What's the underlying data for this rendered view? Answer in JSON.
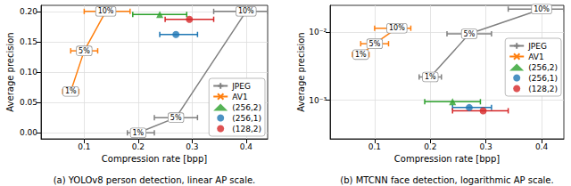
{
  "chart_data": [
    {
      "type": "line",
      "title": "(a) YOLOv8 person detection, linear AP scale.",
      "x_label": "Compression rate [bpp]",
      "y_label": "Average precision",
      "xlim": [
        0.02,
        0.44
      ],
      "xticks": [
        0.1,
        0.2,
        0.3,
        0.4
      ],
      "ylim": [
        -0.01,
        0.21
      ],
      "yticks": [
        {
          "value": 0,
          "label": "0.00"
        },
        {
          "value": 0.05,
          "label": "0.05"
        },
        {
          "value": 0.1,
          "label": "0.10"
        },
        {
          "value": 0.15,
          "label": "0.15"
        },
        {
          "value": 0.2,
          "label": "0.20"
        }
      ],
      "grid": true,
      "legend": "lower right",
      "series": [
        {
          "name": "JPEG",
          "type": "line",
          "color": "#808080",
          "marker": "plus",
          "line_style": "solid",
          "x": [
            0.2,
            0.27,
            0.4
          ],
          "values": [
            0.0,
            0.025,
            0.2
          ],
          "xerr": [
            [
              0.18,
              0.23
            ],
            [
              0.23,
              0.31
            ],
            [
              0.34,
              0.44
            ]
          ],
          "annotations": [
            "1%",
            "5%",
            "10%"
          ]
        },
        {
          "name": "AV1",
          "type": "line",
          "color": "#ff7f0e",
          "marker": "x",
          "line_style": "solid",
          "x": [
            0.075,
            0.1,
            0.14
          ],
          "values": [
            0.068,
            0.135,
            0.2
          ],
          "xerr": [
            [
              0.06,
              0.09
            ],
            [
              0.075,
              0.125
            ],
            [
              0.1,
              0.185
            ]
          ],
          "annotations": [
            "1%",
            "5%",
            "10%"
          ]
        },
        {
          "name": "(256,2)",
          "type": "scatter",
          "color": "#2ca02c",
          "marker": "triangle",
          "x": [
            0.24
          ],
          "values": [
            0.195
          ],
          "xerr": [
            [
              0.19,
              0.29
            ]
          ]
        },
        {
          "name": "(256,1)",
          "type": "scatter",
          "color": "#1f77b4",
          "marker": "circle",
          "x": [
            0.27
          ],
          "values": [
            0.162
          ],
          "xerr": [
            [
              0.24,
              0.31
            ]
          ]
        },
        {
          "name": "(128,2)",
          "type": "scatter",
          "color": "#d62728",
          "marker": "circle",
          "x": [
            0.295
          ],
          "values": [
            0.187
          ],
          "xerr": [
            [
              0.25,
              0.34
            ]
          ]
        }
      ]
    },
    {
      "type": "line",
      "title": "(b) MTCNN face detection, logarithmic AP scale.",
      "x_label": "Compression rate [bpp]",
      "y_label": "Average precision",
      "xlim": [
        0.02,
        0.44
      ],
      "xticks": [
        0.1,
        0.2,
        0.3,
        0.4
      ],
      "ylim": [
        0.00027,
        0.025
      ],
      "yticks": [
        {
          "value": 0.001,
          "label": "10⁻³"
        },
        {
          "value": 0.01,
          "label": "10⁻²"
        }
      ],
      "log": "y",
      "grid": true,
      "legend": "center right",
      "series": [
        {
          "name": "JPEG",
          "type": "line",
          "color": "#808080",
          "marker": "plus",
          "line_style": "solid",
          "x": [
            0.2,
            0.27,
            0.4
          ],
          "values": [
            0.0022,
            0.0095,
            0.022
          ],
          "xerr": [
            [
              0.18,
              0.22
            ],
            [
              0.23,
              0.31
            ],
            [
              0.34,
              0.44
            ]
          ],
          "annotations": [
            "1%",
            "5%",
            "10%"
          ]
        },
        {
          "name": "AV1",
          "type": "line",
          "color": "#ff7f0e",
          "marker": "x",
          "line_style": "solid",
          "x": [
            0.075,
            0.1,
            0.14
          ],
          "values": [
            0.0047,
            0.0068,
            0.0115
          ],
          "xerr": [
            [
              0.06,
              0.09
            ],
            [
              0.075,
              0.125
            ],
            [
              0.1,
              0.165
            ]
          ],
          "annotations": [
            "1%",
            "5%",
            "10%"
          ]
        },
        {
          "name": "(256,2)",
          "type": "scatter",
          "color": "#2ca02c",
          "marker": "triangle",
          "x": [
            0.24
          ],
          "values": [
            0.00095
          ],
          "xerr": [
            [
              0.19,
              0.29
            ]
          ]
        },
        {
          "name": "(256,1)",
          "type": "scatter",
          "color": "#1f77b4",
          "marker": "circle",
          "x": [
            0.27
          ],
          "values": [
            0.00078
          ],
          "xerr": [
            [
              0.24,
              0.31
            ]
          ]
        },
        {
          "name": "(128,2)",
          "type": "scatter",
          "color": "#d62728",
          "marker": "circle",
          "x": [
            0.295
          ],
          "values": [
            0.0007
          ],
          "xerr": [
            [
              0.24,
              0.34
            ]
          ]
        }
      ]
    }
  ]
}
